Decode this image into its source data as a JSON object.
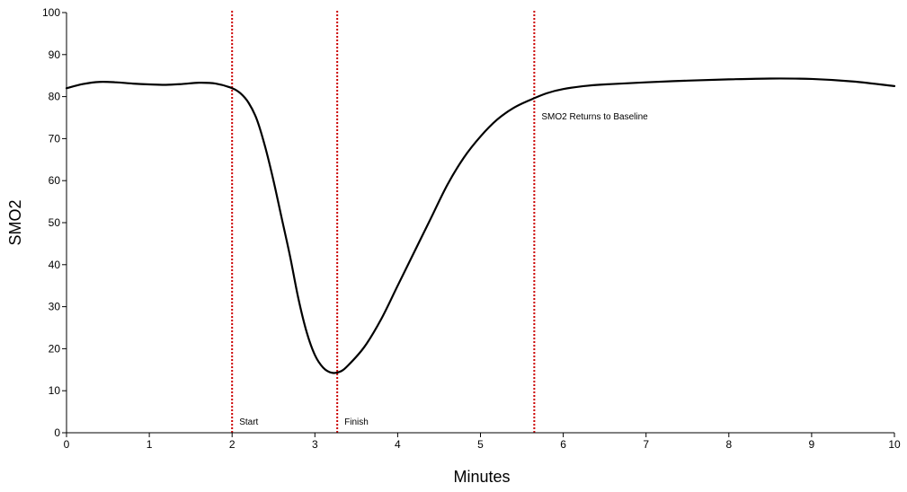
{
  "chart_data": {
    "type": "line",
    "title": "",
    "xlabel": "Minutes",
    "ylabel": "SMO2",
    "xlim": [
      0,
      10
    ],
    "ylim": [
      0,
      100
    ],
    "xticks": [
      0,
      1,
      2,
      3,
      4,
      5,
      6,
      7,
      8,
      9,
      10
    ],
    "yticks": [
      0,
      10,
      20,
      30,
      40,
      50,
      60,
      70,
      80,
      90,
      100
    ],
    "grid": false,
    "legend": "none",
    "line_color": "#000000",
    "marker_color": "#cc0000",
    "series": [
      {
        "x": [
          0,
          0.2,
          0.4,
          0.6,
          0.8,
          1.0,
          1.2,
          1.4,
          1.6,
          1.8,
          2.0,
          2.1,
          2.2,
          2.3,
          2.4,
          2.5,
          2.6,
          2.7,
          2.8,
          2.9,
          3.0,
          3.1,
          3.2,
          3.3,
          3.4,
          3.6,
          3.8,
          4.0,
          4.2,
          4.4,
          4.6,
          4.8,
          5.0,
          5.2,
          5.4,
          5.6,
          5.8,
          6.0,
          6.3,
          6.6,
          7.0,
          7.5,
          8.0,
          8.5,
          9.0,
          9.5,
          10.0
        ],
        "y": [
          82.0,
          83.0,
          83.5,
          83.4,
          83.1,
          82.9,
          82.8,
          83.0,
          83.3,
          83.1,
          82.0,
          80.8,
          78.5,
          74.5,
          68.0,
          60.0,
          51.0,
          42.0,
          32.0,
          24.0,
          18.5,
          15.5,
          14.3,
          14.5,
          16.0,
          20.5,
          27.0,
          35.0,
          43.0,
          51.0,
          59.0,
          65.5,
          70.5,
          74.5,
          77.3,
          79.2,
          80.8,
          81.8,
          82.6,
          83.0,
          83.4,
          83.8,
          84.1,
          84.3,
          84.2,
          83.6,
          82.5
        ]
      }
    ],
    "annotations": [
      {
        "x": 2.0,
        "label": "Start"
      },
      {
        "x": 3.27,
        "label": "Finish"
      },
      {
        "x": 5.65,
        "label": "SMO2 Returns to Baseline"
      }
    ]
  }
}
